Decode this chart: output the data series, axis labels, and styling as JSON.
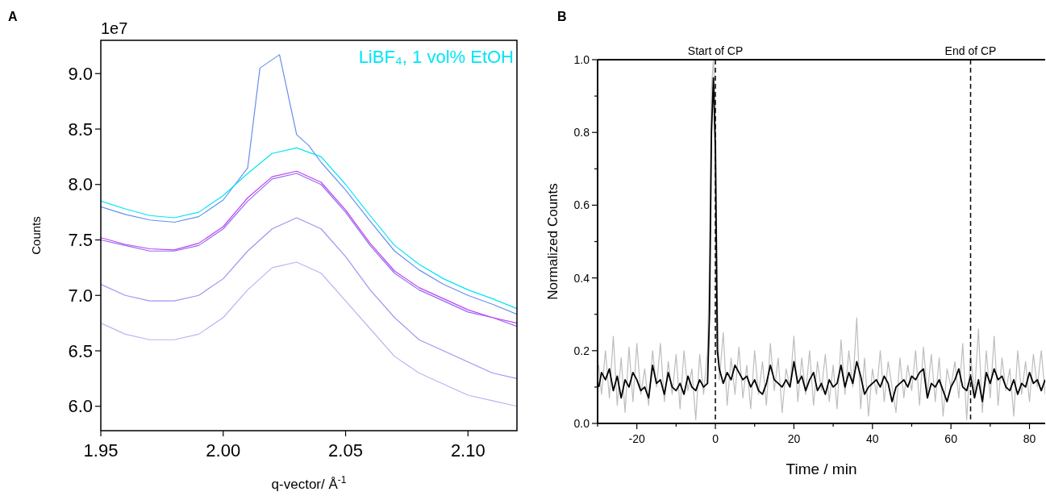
{
  "chart_data": [
    {
      "type": "line",
      "xlabel": "q-vector/ Å$^{-1}$",
      "ylabel": "Counts",
      "annotations": [
        "A",
        "1e7",
        "LiBF₄, 1 vol% EtOH"
      ],
      "x": [
        1.95,
        1.96,
        1.97,
        1.98,
        1.99,
        2.0,
        2.01,
        2.02,
        2.03,
        2.04,
        2.05,
        2.06,
        2.07,
        2.08,
        2.09,
        2.1,
        2.11,
        2.12
      ],
      "xlim": [
        1.95,
        2.12
      ],
      "xticks": [
        {
          "value": 1.95,
          "label": "1.95"
        },
        {
          "value": 2.0,
          "label": "2.00"
        },
        {
          "value": 2.05,
          "label": "2.05"
        },
        {
          "value": 2.1,
          "label": "2.10"
        }
      ],
      "ylim": [
        5.78,
        9.3
      ],
      "yticks": [
        {
          "value": 6,
          "label": "6.0"
        },
        6.5,
        {
          "value": 7,
          "label": "7.0"
        },
        7.5,
        {
          "value": 8,
          "label": "8.0"
        },
        8.5,
        {
          "value": 9,
          "label": "9.0"
        }
      ],
      "series": [
        {
          "color": "#c0b0f2",
          "values": [
            6.75,
            6.65,
            6.6,
            6.6,
            6.65,
            6.8,
            7.05,
            7.25,
            7.3,
            7.2,
            6.95,
            6.7,
            6.45,
            6.3,
            6.2,
            6.1,
            6.05,
            6.0
          ]
        },
        {
          "color": "#a690f2",
          "values": [
            7.1,
            7.0,
            6.95,
            6.95,
            7.0,
            7.15,
            7.4,
            7.6,
            7.7,
            7.6,
            7.35,
            7.05,
            6.8,
            6.6,
            6.5,
            6.4,
            6.3,
            6.25
          ]
        },
        {
          "color": "#8f6cf5",
          "values": [
            7.5,
            7.45,
            7.4,
            7.4,
            7.45,
            7.6,
            7.85,
            8.05,
            8.1,
            8.0,
            7.75,
            7.45,
            7.2,
            7.05,
            6.95,
            6.85,
            6.8,
            6.72
          ]
        },
        {
          "color": "#c040f0",
          "values": [
            7.52,
            7.46,
            7.42,
            7.41,
            7.47,
            7.62,
            7.88,
            8.07,
            8.12,
            8.02,
            7.77,
            7.47,
            7.22,
            7.07,
            6.97,
            6.87,
            6.8,
            6.75
          ]
        },
        {
          "color": "#6a8ef0",
          "x": [
            1.95,
            1.96,
            1.97,
            1.98,
            1.99,
            2.0,
            2.01,
            2.015,
            2.023,
            2.03,
            2.035,
            2.04,
            2.05,
            2.06,
            2.07,
            2.08,
            2.09,
            2.1,
            2.11,
            2.12
          ],
          "values": [
            7.8,
            7.73,
            7.68,
            7.66,
            7.71,
            7.86,
            8.15,
            9.05,
            9.17,
            8.45,
            8.35,
            8.2,
            7.95,
            7.67,
            7.4,
            7.23,
            7.1,
            7.0,
            6.92,
            6.83
          ]
        },
        {
          "color": "#00e5f5",
          "values": [
            7.85,
            7.78,
            7.72,
            7.7,
            7.75,
            7.9,
            8.1,
            8.28,
            8.33,
            8.25,
            8.0,
            7.72,
            7.45,
            7.28,
            7.15,
            7.05,
            6.97,
            6.88
          ]
        }
      ]
    },
    {
      "type": "line",
      "xlabel": "Time / min",
      "ylabel": "Normalized Counts",
      "annotations": [
        "B"
      ],
      "xlim": [
        -30,
        84
      ],
      "xticks": [
        {
          "value": -30,
          "label": null
        },
        -20,
        {
          "value": -10,
          "label": null
        },
        0,
        {
          "value": 10,
          "label": null
        },
        20,
        {
          "value": 30,
          "label": null
        },
        40,
        {
          "value": 50,
          "label": null
        },
        60,
        {
          "value": 70,
          "label": null
        },
        80
      ],
      "ylim": [
        0,
        1.0
      ],
      "yticks": [
        {
          "value": 0,
          "label": "0.0"
        },
        {
          "value": 0.1,
          "label": null
        },
        0.2,
        {
          "value": 0.3,
          "label": null
        },
        0.4,
        {
          "value": 0.5,
          "label": null
        },
        0.6,
        {
          "value": 0.7,
          "label": null
        },
        0.8,
        {
          "value": 0.9,
          "label": null
        },
        {
          "value": 1,
          "label": "1.0"
        }
      ],
      "ref_lines": [
        {
          "axis": "x",
          "value": 0,
          "label": "Start of CP",
          "line_style": "dashed"
        },
        {
          "axis": "x",
          "value": 65,
          "label": "End of CP",
          "line_style": "dashed"
        }
      ],
      "series": [
        {
          "color": "#bdbdbd",
          "x": [
            -29.7,
            -29,
            -28,
            -27,
            -26,
            -25,
            -24,
            -23,
            -22,
            -21,
            -20,
            -19,
            -18,
            -17,
            -16,
            -15,
            -14,
            -13,
            -12,
            -11,
            -10,
            -9,
            -8,
            -7,
            -6,
            -5,
            -4,
            -3,
            -2,
            -1.5,
            -1,
            -0.5,
            0,
            0.5,
            1,
            2,
            3,
            4,
            5,
            6,
            7,
            8,
            9,
            10,
            11,
            12,
            13,
            14,
            15,
            16,
            17,
            18,
            19,
            20,
            21,
            22,
            23,
            24,
            25,
            26,
            27,
            28,
            29,
            30,
            31,
            32,
            33,
            34,
            35,
            36,
            37,
            38,
            39,
            40,
            41,
            42,
            43,
            44,
            45,
            46,
            47,
            48,
            49,
            50,
            51,
            52,
            53,
            54,
            55,
            56,
            57,
            58,
            59,
            60,
            61,
            62,
            63,
            64,
            65,
            66,
            67,
            68,
            69,
            70,
            71,
            72,
            73,
            74,
            75,
            76,
            77,
            78,
            79,
            80,
            81,
            82,
            83,
            84
          ],
          "values": [
            0.16,
            0.08,
            0.2,
            0.07,
            0.24,
            0.05,
            0.18,
            0.03,
            0.21,
            0.06,
            0.22,
            0.08,
            0.15,
            0.05,
            0.2,
            0.1,
            0.22,
            0.06,
            0.17,
            0.08,
            0.19,
            0.04,
            0.2,
            0.09,
            0.15,
            0.01,
            0.19,
            0.08,
            0.2,
            0.45,
            0.92,
            1.0,
            0.88,
            0.35,
            0.12,
            0.25,
            0.05,
            0.18,
            0.08,
            0.21,
            0.07,
            0.16,
            0.04,
            0.2,
            0.08,
            0.17,
            0.05,
            0.22,
            0.09,
            0.18,
            0.03,
            0.15,
            0.1,
            0.24,
            0.06,
            0.18,
            0.08,
            0.2,
            0.05,
            0.17,
            0.09,
            0.19,
            0.06,
            0.16,
            0.04,
            0.23,
            0.08,
            0.2,
            0.1,
            0.29,
            0.04,
            0.18,
            0.02,
            0.15,
            0.08,
            0.2,
            0.06,
            0.17,
            0.1,
            0.03,
            0.18,
            0.07,
            0.16,
            0.09,
            0.2,
            0.05,
            0.21,
            0.08,
            0.19,
            0.06,
            0.18,
            0.02,
            0.15,
            0.1,
            0.17,
            0.07,
            0.22,
            0.01,
            0.19,
            0.08,
            0.26,
            0.03,
            0.2,
            0.07,
            0.24,
            0.05,
            0.18,
            0.09,
            0.15,
            0.02,
            0.2,
            0.08,
            0.17,
            0.06,
            0.19,
            0.1,
            0.2,
            0.08
          ]
        },
        {
          "color": "#000000",
          "x": [
            -29.7,
            -29,
            -28,
            -27,
            -26,
            -25,
            -24,
            -23,
            -22,
            -21,
            -20,
            -19,
            -18,
            -17,
            -16,
            -15,
            -14,
            -13,
            -12,
            -11,
            -10,
            -9,
            -8,
            -7,
            -6,
            -5,
            -4,
            -3,
            -2,
            -1.5,
            -1,
            -0.5,
            0,
            0.5,
            1,
            2,
            3,
            4,
            5,
            6,
            7,
            8,
            9,
            10,
            11,
            12,
            13,
            14,
            15,
            16,
            17,
            18,
            19,
            20,
            21,
            22,
            23,
            24,
            25,
            26,
            27,
            28,
            29,
            30,
            31,
            32,
            33,
            34,
            35,
            36,
            37,
            38,
            39,
            40,
            41,
            42,
            43,
            44,
            45,
            46,
            47,
            48,
            49,
            50,
            51,
            52,
            53,
            54,
            55,
            56,
            57,
            58,
            59,
            60,
            61,
            62,
            63,
            64,
            65,
            66,
            67,
            68,
            69,
            70,
            71,
            72,
            73,
            74,
            75,
            76,
            77,
            78,
            79,
            80,
            81,
            82,
            83,
            84
          ],
          "values": [
            0.1,
            0.14,
            0.12,
            0.15,
            0.09,
            0.13,
            0.07,
            0.12,
            0.1,
            0.14,
            0.12,
            0.09,
            0.1,
            0.07,
            0.16,
            0.11,
            0.12,
            0.08,
            0.14,
            0.1,
            0.09,
            0.11,
            0.08,
            0.13,
            0.1,
            0.09,
            0.12,
            0.1,
            0.11,
            0.3,
            0.8,
            0.95,
            0.75,
            0.2,
            0.15,
            0.11,
            0.14,
            0.12,
            0.16,
            0.14,
            0.12,
            0.13,
            0.1,
            0.12,
            0.09,
            0.08,
            0.11,
            0.16,
            0.12,
            0.11,
            0.1,
            0.12,
            0.1,
            0.17,
            0.11,
            0.13,
            0.09,
            0.12,
            0.14,
            0.09,
            0.11,
            0.08,
            0.12,
            0.1,
            0.11,
            0.16,
            0.1,
            0.14,
            0.11,
            0.17,
            0.13,
            0.08,
            0.1,
            0.11,
            0.12,
            0.1,
            0.13,
            0.11,
            0.06,
            0.1,
            0.11,
            0.12,
            0.1,
            0.13,
            0.12,
            0.14,
            0.15,
            0.07,
            0.11,
            0.1,
            0.12,
            0.09,
            0.06,
            0.1,
            0.12,
            0.15,
            0.1,
            0.09,
            0.13,
            0.07,
            0.12,
            0.06,
            0.14,
            0.11,
            0.15,
            0.12,
            0.13,
            0.1,
            0.09,
            0.12,
            0.08,
            0.11,
            0.1,
            0.14,
            0.11,
            0.12,
            0.09,
            0.12
          ]
        }
      ]
    }
  ]
}
